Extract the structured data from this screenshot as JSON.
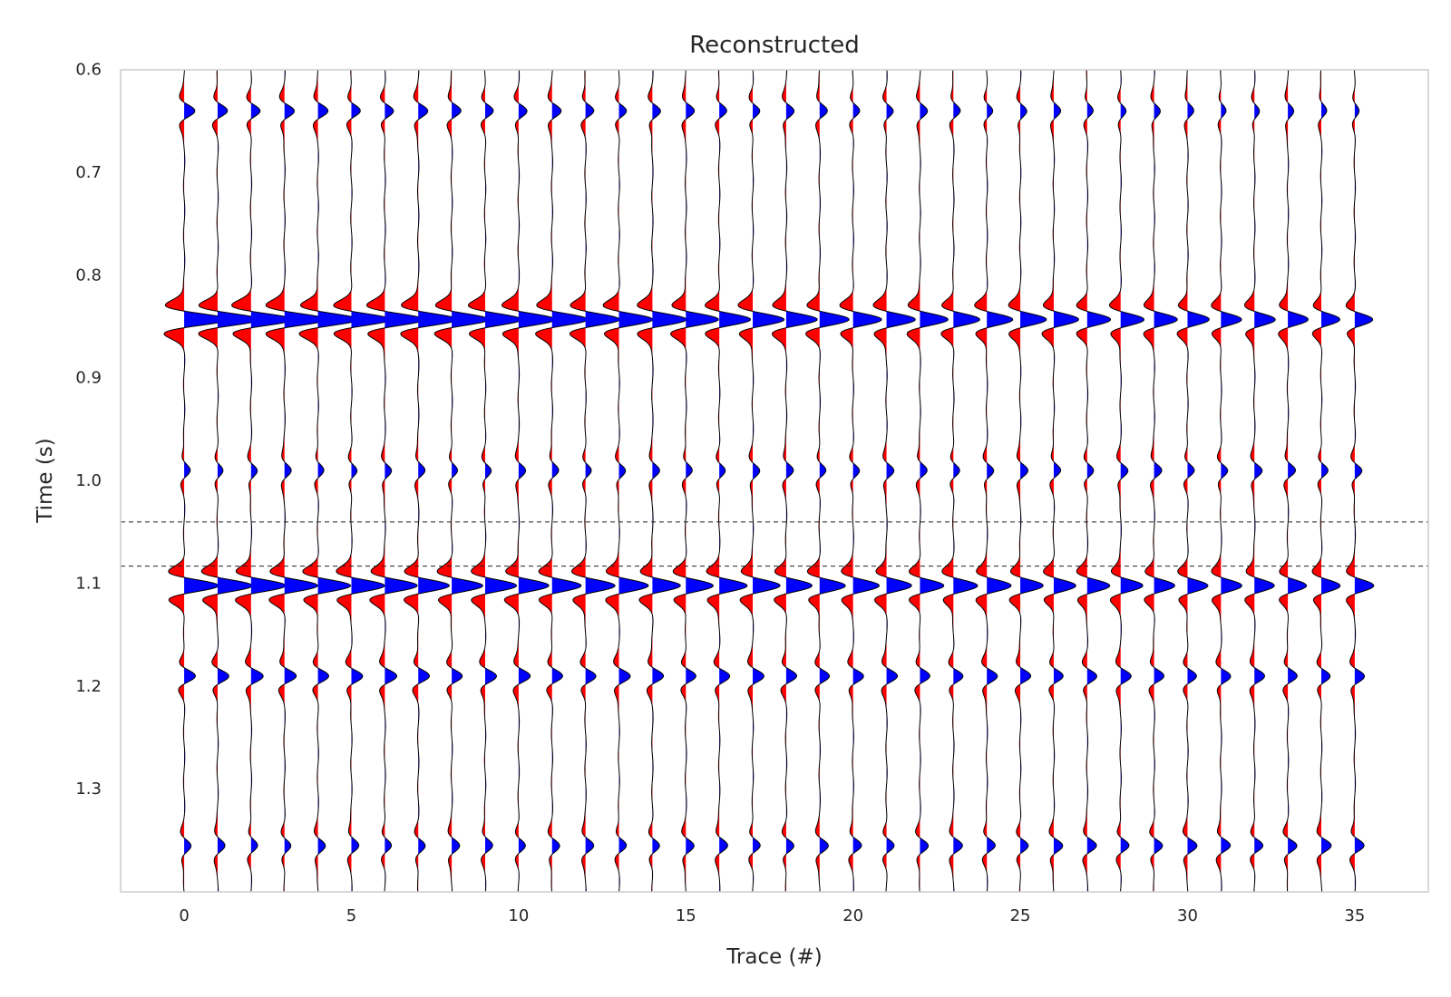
{
  "chart_data": {
    "type": "seismic-wiggle",
    "title": "Reconstructed",
    "xlabel": "Trace (#)",
    "ylabel": "Time (s)",
    "xlim": [
      -1.9,
      37.2
    ],
    "ylim": [
      1.4,
      0.6
    ],
    "y_inverted": true,
    "grid": false,
    "n_traces": 36,
    "trace_indices": [
      0,
      1,
      2,
      3,
      4,
      5,
      6,
      7,
      8,
      9,
      10,
      11,
      12,
      13,
      14,
      15,
      16,
      17,
      18,
      19,
      20,
      21,
      22,
      23,
      24,
      25,
      26,
      27,
      28,
      29,
      30,
      31,
      32,
      33,
      34,
      35
    ],
    "x_ticks": [
      0,
      5,
      10,
      15,
      20,
      25,
      30,
      35
    ],
    "x_tick_labels": [
      "0",
      "5",
      "10",
      "15",
      "20",
      "25",
      "30",
      "35"
    ],
    "y_ticks": [
      0.6,
      0.7,
      0.8,
      0.9,
      1.0,
      1.1,
      1.2,
      1.3
    ],
    "y_tick_labels": [
      "0.6",
      "0.7",
      "0.8",
      "0.9",
      "1.0",
      "1.1",
      "1.2",
      "1.3"
    ],
    "horizontal_lines": [
      1.04,
      1.083
    ],
    "positive_fill_color": "#0000ff",
    "negative_fill_color": "#ff0000",
    "trace_line_color": "#000000",
    "events": [
      {
        "name": "event-0.843s",
        "t0": 0.843,
        "amp_first": 1.3,
        "amp_last": 0.55
      },
      {
        "name": "event-1.10s",
        "t0": 1.102,
        "amp_first": 1.05,
        "amp_last": 0.55
      },
      {
        "name": "event-1.19s",
        "t0": 1.19,
        "amp_first": 0.35,
        "amp_last": 0.28
      },
      {
        "name": "event-0.64s",
        "t0": 0.64,
        "amp_first": 0.3,
        "amp_last": 0.15
      },
      {
        "name": "event-1.355s",
        "t0": 1.355,
        "amp_first": 0.2,
        "amp_last": 0.28
      },
      {
        "name": "event-0.99s",
        "t0": 0.99,
        "amp_first": 0.18,
        "amp_last": 0.22
      }
    ]
  }
}
